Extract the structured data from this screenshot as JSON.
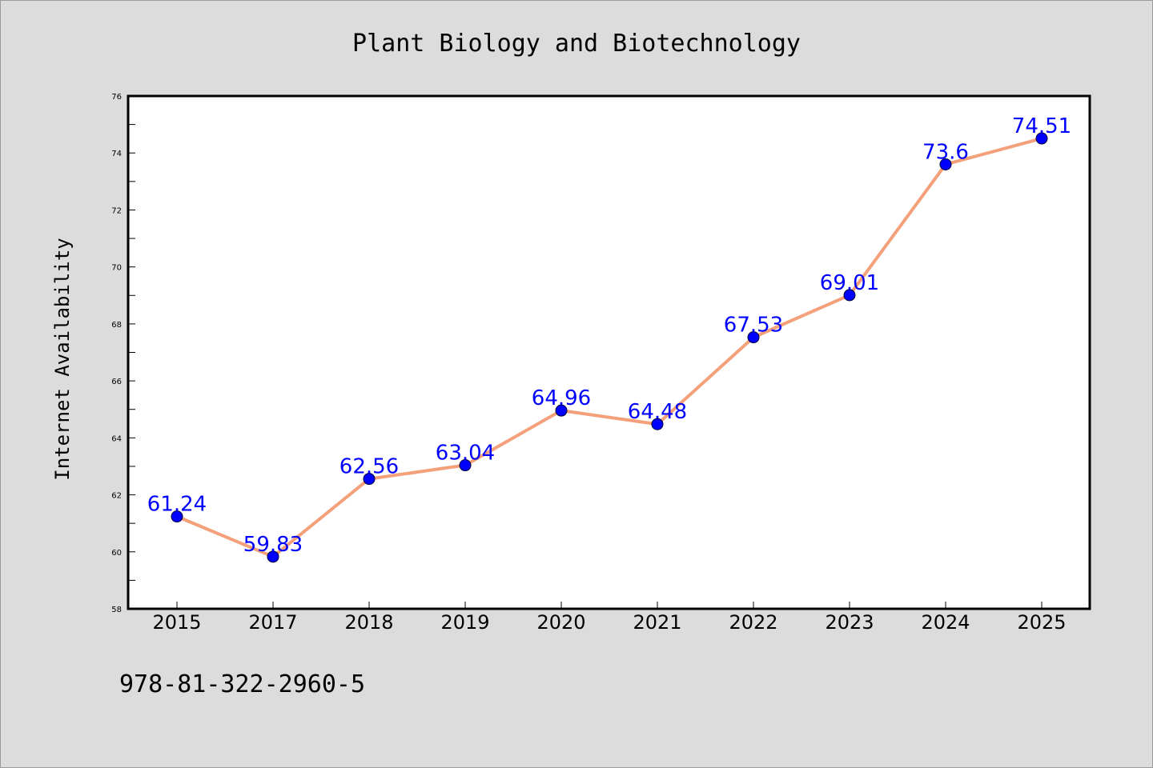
{
  "chart_data": {
    "type": "line",
    "title": "Plant Biology and Biotechnology",
    "xlabel": "",
    "ylabel": "Internet Availability",
    "x": [
      "2015",
      "2017",
      "2018",
      "2019",
      "2020",
      "2021",
      "2022",
      "2023",
      "2024",
      "2025"
    ],
    "series": [
      {
        "values": [
          61.24,
          59.83,
          62.56,
          63.04,
          64.96,
          64.48,
          67.53,
          69.01,
          73.6,
          74.51
        ],
        "data_labels": [
          "61.24",
          "59.83",
          "62.56",
          "63.04",
          "64.96",
          "64.48",
          "67.53",
          "69.01",
          "73.6",
          "74.51"
        ],
        "line_color": "#f4a07a",
        "marker_color": "#0000ff"
      }
    ],
    "ylim": [
      58,
      76
    ],
    "yticks": [
      "58",
      "60",
      "62",
      "64",
      "66",
      "68",
      "70",
      "72",
      "74",
      "76"
    ],
    "grid": false,
    "legend": "none"
  },
  "footer": {
    "isbn": "978-81-322-2960-5"
  }
}
